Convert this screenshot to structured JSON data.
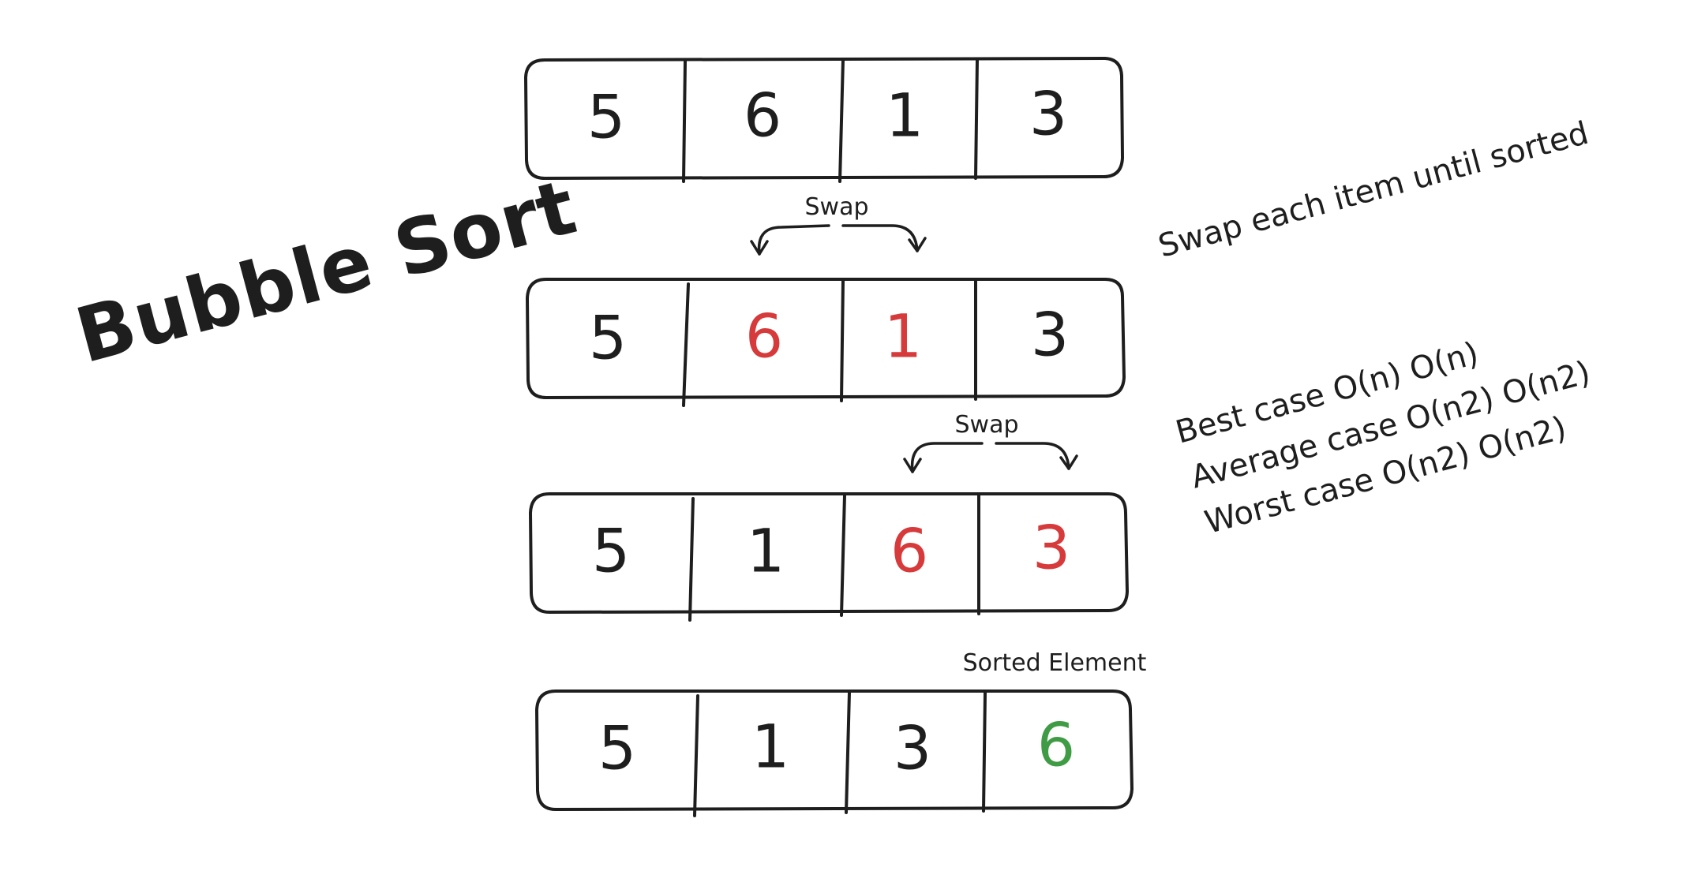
{
  "title": "Bubble Sort",
  "colors": {
    "ink": "#1e1e1e",
    "swap": "#d63a3a",
    "sorted": "#3f9c45",
    "background": "#ffffff"
  },
  "arrays": [
    {
      "name": "initial",
      "cells": [
        {
          "value": "5",
          "state": "normal"
        },
        {
          "value": "6",
          "state": "normal"
        },
        {
          "value": "1",
          "state": "normal"
        },
        {
          "value": "3",
          "state": "normal"
        }
      ]
    },
    {
      "name": "swap-1",
      "cells": [
        {
          "value": "5",
          "state": "normal"
        },
        {
          "value": "6",
          "state": "swap"
        },
        {
          "value": "1",
          "state": "swap"
        },
        {
          "value": "3",
          "state": "normal"
        }
      ]
    },
    {
      "name": "swap-2",
      "cells": [
        {
          "value": "5",
          "state": "normal"
        },
        {
          "value": "1",
          "state": "normal"
        },
        {
          "value": "6",
          "state": "swap"
        },
        {
          "value": "3",
          "state": "swap"
        }
      ]
    },
    {
      "name": "result",
      "cells": [
        {
          "value": "5",
          "state": "normal"
        },
        {
          "value": "1",
          "state": "normal"
        },
        {
          "value": "3",
          "state": "normal"
        },
        {
          "value": "6",
          "state": "sorted"
        }
      ]
    }
  ],
  "labels": {
    "swap_1": "Swap",
    "swap_2": "Swap",
    "sorted_element": "Sorted Element"
  },
  "notes": {
    "swap_rule": "Swap each item until sorted",
    "best_case": "Best case O(n) O(n)",
    "average_case": "Average case O(n2) O(n2)",
    "worst_case": "Worst case O(n2) O(n2)"
  }
}
